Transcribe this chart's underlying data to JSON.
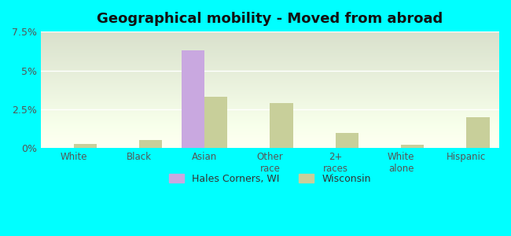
{
  "title": "Geographical mobility - Moved from abroad",
  "categories": [
    "White",
    "Black",
    "Asian",
    "Other\nrace",
    "2+\nraces",
    "White\nalone",
    "Hispanic"
  ],
  "hales_corners": [
    0.0,
    0.0,
    6.3,
    0.0,
    0.0,
    0.0,
    0.0
  ],
  "wisconsin": [
    0.3,
    0.55,
    3.3,
    2.9,
    1.0,
    0.25,
    2.0
  ],
  "bar_color_hales": "#c9a8e0",
  "bar_color_wi": "#c8cf9a",
  "background_color_chart": "#e8f5e5",
  "background_outer": "#00ffff",
  "ylim": [
    0,
    7.5
  ],
  "yticks": [
    0,
    2.5,
    5.0,
    7.5
  ],
  "ytick_labels": [
    "0%",
    "2.5%",
    "5%",
    "7.5%"
  ],
  "legend_hales": "Hales Corners, WI",
  "legend_wi": "Wisconsin",
  "bar_width": 0.35
}
